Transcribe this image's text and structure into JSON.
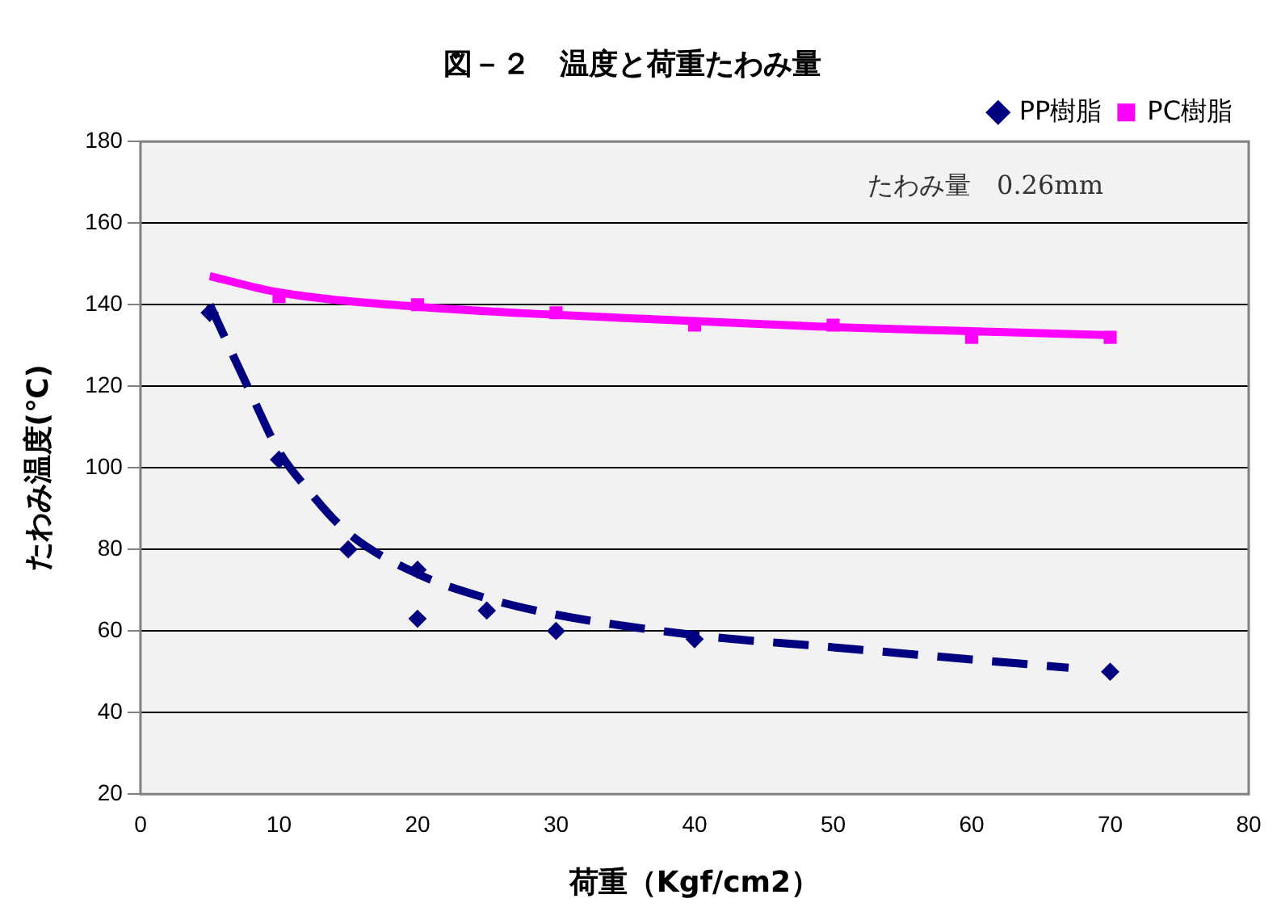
{
  "chart_data": {
    "type": "scatter",
    "title": "図－２　温度と荷重たわみ量",
    "xlabel": "荷重（Kgf/cm2）",
    "ylabel": "たわみ温度(℃)",
    "annotations": [
      "たわみ量　0.26mm"
    ],
    "xlim": [
      0,
      80
    ],
    "xticks": [
      0,
      10,
      20,
      30,
      40,
      50,
      60,
      70,
      80
    ],
    "ylim": [
      20,
      180
    ],
    "yticks": [
      20,
      40,
      60,
      80,
      100,
      120,
      140,
      160,
      180
    ],
    "grid": "y",
    "legend": "top right",
    "series": [
      {
        "name": "PP樹脂",
        "type": "scatter",
        "marker": "diamond",
        "color": "#000080",
        "x": [
          5,
          10,
          15,
          20,
          20,
          25,
          30,
          40,
          70
        ],
        "values": [
          138,
          102,
          80,
          75,
          63,
          65,
          60,
          58,
          50
        ]
      },
      {
        "name": "PC樹脂",
        "type": "scatter",
        "marker": "square",
        "color": "#ff00ff",
        "x": [
          10,
          20,
          30,
          40,
          50,
          60,
          70
        ],
        "values": [
          142,
          140,
          138,
          135,
          135,
          132,
          132
        ]
      },
      {
        "type": "line",
        "marker": "none",
        "line_style": "dashed",
        "color": "#000080",
        "x": [
          5,
          8,
          10,
          12,
          15,
          20,
          25,
          30,
          40,
          50,
          60,
          67
        ],
        "values": [
          140,
          118,
          104,
          95,
          84,
          74,
          68,
          64,
          59,
          56,
          53,
          51
        ]
      },
      {
        "type": "line",
        "marker": "none",
        "line_style": "solid",
        "color": "#ff00ff",
        "x": [
          5,
          10,
          20,
          30,
          40,
          50,
          60,
          70
        ],
        "values": [
          147,
          143,
          139.5,
          137.5,
          136,
          134.5,
          133.5,
          132.5
        ]
      }
    ]
  }
}
